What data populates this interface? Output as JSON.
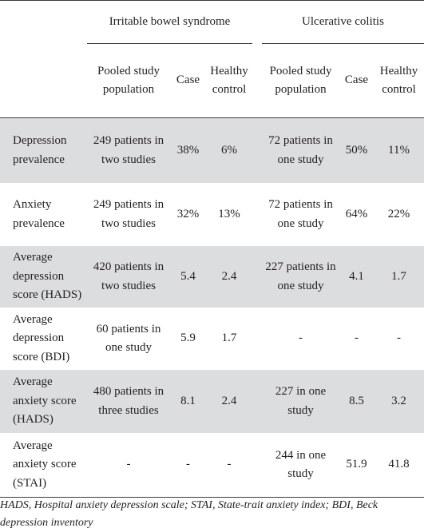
{
  "header": {
    "group_ibs": "Irritable bowel syndrome",
    "group_uc": "Ulcerative colitis",
    "col_pooled_ibs": "Pooled study population",
    "col_case_ibs": "Case",
    "col_control_ibs": "Healthy control",
    "col_pooled_uc": "Pooled study population",
    "col_case_uc": "Case",
    "col_control_uc": "Healthy control"
  },
  "rows": [
    {
      "label": "Depression prevalence",
      "ibs_pop": "249 patients in two studies",
      "ibs_case": "38%",
      "ibs_ctrl": "6%",
      "uc_pop": "72 patients in one study",
      "uc_case": "50%",
      "uc_ctrl": "11%"
    },
    {
      "label": "Anxiety prevalence",
      "ibs_pop": "249 patients in two studies",
      "ibs_case": "32%",
      "ibs_ctrl": "13%",
      "uc_pop": "72 patients in one study",
      "uc_case": "64%",
      "uc_ctrl": "22%"
    },
    {
      "label": "Average depression score (HADS)",
      "ibs_pop": "420 patients in two studies",
      "ibs_case": "5.4",
      "ibs_ctrl": "2.4",
      "uc_pop": "227 patients in one study",
      "uc_case": "4.1",
      "uc_ctrl": "1.7"
    },
    {
      "label": "Average depression score (BDI)",
      "ibs_pop": "60 patients in one study",
      "ibs_case": "5.9",
      "ibs_ctrl": "1.7",
      "uc_pop": "-",
      "uc_case": "-",
      "uc_ctrl": "-"
    },
    {
      "label": "Average anxiety score (HADS)",
      "ibs_pop": "480 patients in three studies",
      "ibs_case": "8.1",
      "ibs_ctrl": "2.4",
      "uc_pop": "227 in one study",
      "uc_case": "8.5",
      "uc_ctrl": "3.2"
    },
    {
      "label": "Average anxiety score (STAI)",
      "ibs_pop": "-",
      "ibs_case": "-",
      "ibs_ctrl": "-",
      "uc_pop": "244 in one study",
      "uc_case": "51.9",
      "uc_ctrl": "41.8"
    }
  ],
  "footnote": "HADS, Hospital anxiety depression scale; STAI, State-trait anxiety index; BDI, Beck depression inventory",
  "colors": {
    "shade": "#dcdddf",
    "rule": "#3c3c3c",
    "text": "#231f20"
  }
}
